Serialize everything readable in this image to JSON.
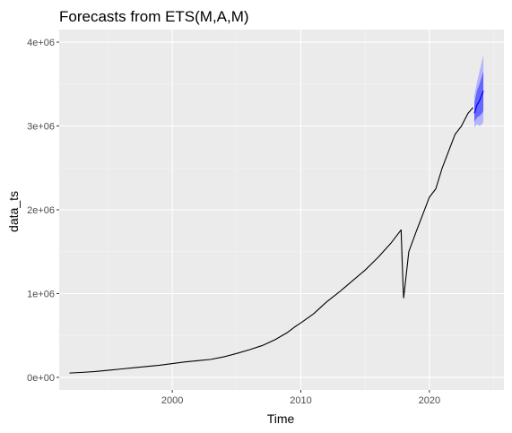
{
  "chart_data": {
    "type": "line",
    "title": "Forecasts from ETS(M,A,M)",
    "xlabel": "Time",
    "ylabel": "data_ts",
    "xlim": [
      1991.2,
      2025.8
    ],
    "ylim": [
      -150000,
      4150000
    ],
    "x_ticks": [
      2000,
      2010,
      2020
    ],
    "x_tick_labels": [
      "2000",
      "2010",
      "2020"
    ],
    "y_ticks": [
      0,
      1000000,
      2000000,
      3000000,
      4000000
    ],
    "y_tick_labels": [
      "0e+00",
      "1e+06",
      "2e+06",
      "3e+06",
      "4e+06"
    ],
    "grid": true,
    "colors": {
      "panel": "#ebebeb",
      "grid_major": "#ffffff",
      "grid_minor": "#f4f4f4",
      "series": "#000000",
      "forecast": "#0000ff",
      "band_80": "#5959ff",
      "band_95": "#aaaaff"
    },
    "series": [
      {
        "x": [
          1992.0,
          1993.0,
          1994.0,
          1995.0,
          1996.0,
          1997.0,
          1998.0,
          1999.0,
          2000.0,
          2001.0,
          2002.0,
          2003.0,
          2004.0,
          2005.0,
          2006.0,
          2007.0,
          2008.0,
          2009.0,
          2009.5,
          2010.0,
          2011.0,
          2012.0,
          2013.0,
          2014.0,
          2015.0,
          2016.0,
          2017.0,
          2017.8,
          2017.95,
          2018.0,
          2018.4,
          2019.0,
          2019.5,
          2020.0,
          2020.5,
          2021.0,
          2021.5,
          2022.0,
          2022.5,
          2023.0,
          2023.4
        ],
        "values": [
          52000,
          60000,
          70000,
          85000,
          100000,
          115000,
          130000,
          145000,
          165000,
          185000,
          200000,
          215000,
          245000,
          285000,
          330000,
          380000,
          450000,
          540000,
          600000,
          650000,
          760000,
          900000,
          1020000,
          1150000,
          1280000,
          1430000,
          1600000,
          1760000,
          1100000,
          950000,
          1500000,
          1750000,
          1950000,
          2150000,
          2250000,
          2500000,
          2700000,
          2900000,
          3000000,
          3150000,
          3220000
        ]
      }
    ],
    "forecast": {
      "x": [
        2023.5,
        2023.7,
        2023.9,
        2024.1,
        2024.2
      ],
      "mean": [
        3150000,
        3250000,
        3300000,
        3380000,
        3420000
      ],
      "lo80": [
        3050000,
        3100000,
        3120000,
        3150000,
        3180000
      ],
      "hi80": [
        3280000,
        3420000,
        3500000,
        3600000,
        3650000
      ],
      "lo95": [
        2980000,
        3020000,
        3000000,
        3020000,
        3050000
      ],
      "hi95": [
        3360000,
        3520000,
        3650000,
        3780000,
        3850000
      ]
    }
  }
}
